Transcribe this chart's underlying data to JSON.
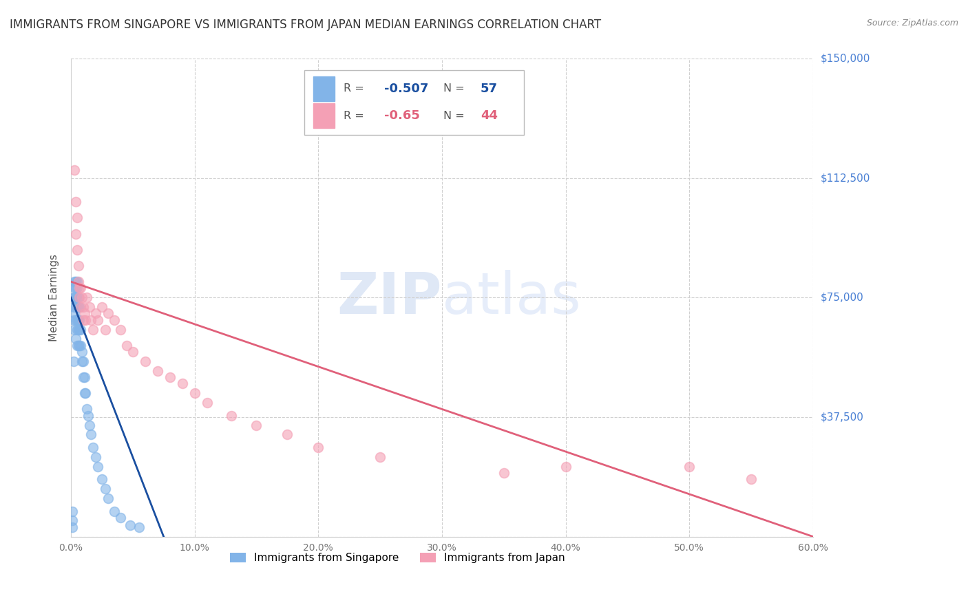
{
  "title": "IMMIGRANTS FROM SINGAPORE VS IMMIGRANTS FROM JAPAN MEDIAN EARNINGS CORRELATION CHART",
  "source": "Source: ZipAtlas.com",
  "ylabel": "Median Earnings",
  "xlim": [
    0.0,
    0.6
  ],
  "ylim": [
    0,
    150000
  ],
  "yticks": [
    0,
    37500,
    75000,
    112500,
    150000
  ],
  "ytick_labels": [
    "",
    "$37,500",
    "$75,000",
    "$112,500",
    "$150,000"
  ],
  "xticks": [
    0.0,
    0.1,
    0.2,
    0.3,
    0.4,
    0.5,
    0.6
  ],
  "xtick_labels": [
    "0.0%",
    "10.0%",
    "20.0%",
    "30.0%",
    "40.0%",
    "50.0%",
    "60.0%"
  ],
  "singapore_color": "#82b4e8",
  "japan_color": "#f4a0b5",
  "singapore_line_color": "#1a4fa0",
  "japan_line_color": "#e0607a",
  "singapore_R": -0.507,
  "singapore_N": 57,
  "japan_R": -0.65,
  "japan_N": 44,
  "background_color": "#ffffff",
  "grid_color": "#d0d0d0",
  "right_label_color": "#4a80d4",
  "title_color": "#333333",
  "title_fontsize": 12,
  "singapore_x": [
    0.001,
    0.001,
    0.001,
    0.002,
    0.002,
    0.002,
    0.002,
    0.003,
    0.003,
    0.003,
    0.003,
    0.003,
    0.004,
    0.004,
    0.004,
    0.004,
    0.004,
    0.004,
    0.005,
    0.005,
    0.005,
    0.005,
    0.005,
    0.005,
    0.005,
    0.006,
    0.006,
    0.006,
    0.006,
    0.006,
    0.007,
    0.007,
    0.007,
    0.007,
    0.008,
    0.008,
    0.009,
    0.009,
    0.01,
    0.01,
    0.011,
    0.011,
    0.012,
    0.013,
    0.014,
    0.015,
    0.016,
    0.018,
    0.02,
    0.022,
    0.025,
    0.028,
    0.03,
    0.035,
    0.04,
    0.048,
    0.055
  ],
  "singapore_y": [
    8000,
    5000,
    3000,
    55000,
    75000,
    72000,
    68000,
    80000,
    78000,
    75000,
    70000,
    65000,
    80000,
    78000,
    75000,
    72000,
    68000,
    62000,
    80000,
    78000,
    75000,
    72000,
    68000,
    65000,
    60000,
    75000,
    72000,
    68000,
    65000,
    60000,
    72000,
    68000,
    65000,
    60000,
    65000,
    60000,
    58000,
    55000,
    55000,
    50000,
    50000,
    45000,
    45000,
    40000,
    38000,
    35000,
    32000,
    28000,
    25000,
    22000,
    18000,
    15000,
    12000,
    8000,
    6000,
    3500,
    3000
  ],
  "japan_x": [
    0.003,
    0.004,
    0.004,
    0.005,
    0.005,
    0.006,
    0.006,
    0.007,
    0.007,
    0.008,
    0.008,
    0.009,
    0.01,
    0.01,
    0.011,
    0.012,
    0.013,
    0.015,
    0.016,
    0.018,
    0.02,
    0.022,
    0.025,
    0.028,
    0.03,
    0.035,
    0.04,
    0.045,
    0.05,
    0.06,
    0.07,
    0.08,
    0.09,
    0.1,
    0.11,
    0.13,
    0.15,
    0.175,
    0.2,
    0.25,
    0.35,
    0.4,
    0.5,
    0.55
  ],
  "japan_y": [
    115000,
    105000,
    95000,
    100000,
    90000,
    85000,
    80000,
    78000,
    75000,
    78000,
    72000,
    75000,
    72000,
    68000,
    70000,
    68000,
    75000,
    72000,
    68000,
    65000,
    70000,
    68000,
    72000,
    65000,
    70000,
    68000,
    65000,
    60000,
    58000,
    55000,
    52000,
    50000,
    48000,
    45000,
    42000,
    38000,
    35000,
    32000,
    28000,
    25000,
    20000,
    22000,
    22000,
    18000
  ],
  "singapore_trendline_x": [
    0.0,
    0.075
  ],
  "singapore_trendline_y": [
    75000,
    0
  ],
  "japan_trendline_x": [
    0.0,
    0.6
  ],
  "japan_trendline_y": [
    80000,
    0
  ]
}
